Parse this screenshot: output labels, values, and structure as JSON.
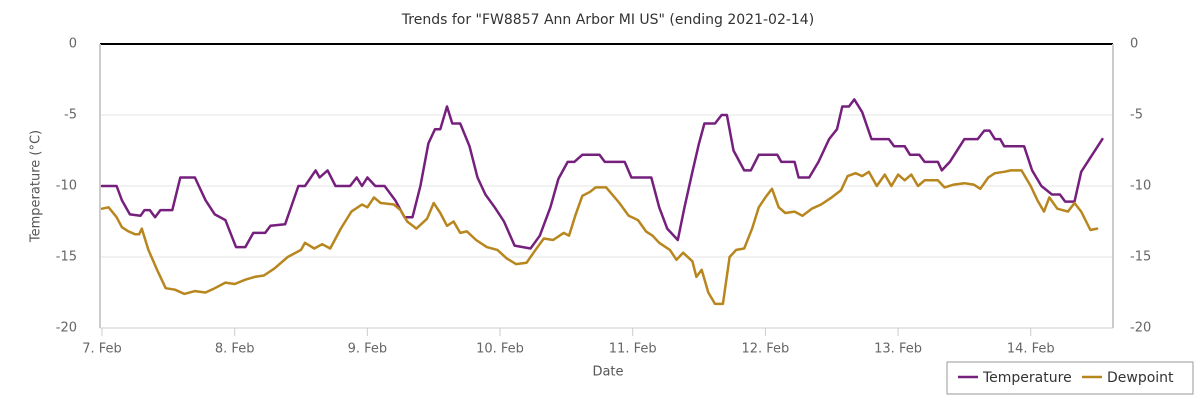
{
  "chart_data": {
    "type": "line",
    "title": "Trends for \"FW8857 Ann Arbor MI US\" (ending 2021-02-14)",
    "x_label": "Date",
    "y_label": "Temperature (°C)",
    "xlim": [
      7,
      14.62
    ],
    "xticks": [
      {
        "value": 7,
        "label": "7. Feb"
      },
      {
        "value": 8,
        "label": "8. Feb"
      },
      {
        "value": 9,
        "label": "9. Feb"
      },
      {
        "value": 10,
        "label": "10. Feb"
      },
      {
        "value": 11,
        "label": "11. Feb"
      },
      {
        "value": 12,
        "label": "12. Feb"
      },
      {
        "value": 13,
        "label": "13. Feb"
      },
      {
        "value": 14,
        "label": "14. Feb"
      }
    ],
    "ylim": [
      -20,
      0
    ],
    "yticks": [
      0,
      -5,
      -10,
      -15,
      -20
    ],
    "y2lim": [
      -20,
      0
    ],
    "y2ticks": [
      0,
      -5,
      -10,
      -15,
      -20
    ],
    "grid": true,
    "legend": "bottom-right",
    "series": [
      {
        "name": "Temperature",
        "color": "#76207e",
        "x": [
          7.0,
          7.11,
          7.15,
          7.21,
          7.29,
          7.32,
          7.36,
          7.4,
          7.44,
          7.53,
          7.59,
          7.7,
          7.78,
          7.85,
          7.93,
          8.01,
          8.08,
          8.14,
          8.23,
          8.27,
          8.38,
          8.48,
          8.53,
          8.61,
          8.64,
          8.7,
          8.76,
          8.87,
          8.92,
          8.96,
          9.0,
          9.06,
          9.13,
          9.21,
          9.28,
          9.34,
          9.4,
          9.46,
          9.51,
          9.55,
          9.6,
          9.64,
          9.7,
          9.77,
          9.83,
          9.89,
          9.96,
          10.03,
          10.11,
          10.23,
          10.3,
          10.38,
          10.44,
          10.51,
          10.56,
          10.62,
          10.75,
          10.79,
          10.94,
          10.99,
          11.14,
          11.2,
          11.26,
          11.34,
          11.39,
          11.45,
          11.5,
          11.54,
          11.62,
          11.67,
          11.71,
          11.76,
          11.84,
          11.89,
          11.95,
          12.09,
          12.12,
          12.22,
          12.25,
          12.33,
          12.4,
          12.48,
          12.54,
          12.58,
          12.63,
          12.67,
          12.73,
          12.8,
          12.93,
          12.97,
          13.05,
          13.09,
          13.16,
          13.2,
          13.3,
          13.33,
          13.39,
          13.5,
          13.6,
          13.65,
          13.69,
          13.73,
          13.77,
          13.8,
          13.95,
          14.01,
          14.08,
          14.16,
          14.22,
          14.26,
          14.33,
          14.38,
          14.45,
          14.54
        ],
        "values": [
          -10,
          -10,
          -11,
          -12,
          -12.1,
          -11.7,
          -11.7,
          -12.2,
          -11.7,
          -11.7,
          -9.4,
          -9.4,
          -11,
          -12,
          -12.4,
          -14.3,
          -14.3,
          -13.3,
          -13.3,
          -12.8,
          -12.7,
          -10,
          -10,
          -8.9,
          -9.4,
          -8.9,
          -10,
          -10,
          -9.4,
          -10,
          -9.4,
          -10,
          -10,
          -11,
          -12.2,
          -12.2,
          -10,
          -7,
          -6,
          -6,
          -4.4,
          -5.6,
          -5.6,
          -7.2,
          -9.4,
          -10.6,
          -11.5,
          -12.5,
          -14.2,
          -14.4,
          -13.5,
          -11.5,
          -9.5,
          -8.3,
          -8.3,
          -7.8,
          -7.8,
          -8.3,
          -8.3,
          -9.4,
          -9.4,
          -11.5,
          -13,
          -13.8,
          -11.5,
          -9,
          -7,
          -5.6,
          -5.6,
          -5,
          -5,
          -7.5,
          -8.9,
          -8.9,
          -7.8,
          -7.8,
          -8.3,
          -8.3,
          -9.4,
          -9.4,
          -8.3,
          -6.7,
          -6,
          -4.4,
          -4.4,
          -3.9,
          -4.8,
          -6.7,
          -6.7,
          -7.2,
          -7.2,
          -7.8,
          -7.8,
          -8.3,
          -8.3,
          -8.9,
          -8.3,
          -6.7,
          -6.7,
          -6.1,
          -6.1,
          -6.7,
          -6.7,
          -7.2,
          -7.2,
          -8.9,
          -10,
          -10.6,
          -10.6,
          -11.1,
          -11.1,
          -9,
          -8,
          -6.7
        ]
      },
      {
        "name": "Dewpoint",
        "color": "#b8861e",
        "x": [
          7.0,
          7.05,
          7.11,
          7.15,
          7.2,
          7.25,
          7.28,
          7.3,
          7.35,
          7.42,
          7.48,
          7.55,
          7.62,
          7.7,
          7.78,
          7.85,
          7.93,
          8.0,
          8.08,
          8.15,
          8.22,
          8.3,
          8.4,
          8.5,
          8.53,
          8.6,
          8.66,
          8.72,
          8.8,
          8.88,
          8.96,
          9.0,
          9.05,
          9.1,
          9.2,
          9.25,
          9.3,
          9.37,
          9.45,
          9.5,
          9.55,
          9.6,
          9.65,
          9.7,
          9.75,
          9.82,
          9.9,
          9.98,
          10.05,
          10.12,
          10.2,
          10.26,
          10.33,
          10.4,
          10.48,
          10.52,
          10.57,
          10.62,
          10.68,
          10.72,
          10.8,
          10.9,
          10.97,
          11.04,
          11.1,
          11.15,
          11.2,
          11.28,
          11.33,
          11.38,
          11.45,
          11.48,
          11.52,
          11.57,
          11.62,
          11.68,
          11.73,
          11.78,
          11.84,
          11.9,
          11.95,
          12.0,
          12.05,
          12.1,
          12.15,
          12.22,
          12.28,
          12.35,
          12.42,
          12.5,
          12.57,
          12.62,
          12.68,
          12.73,
          12.78,
          12.84,
          12.9,
          12.95,
          13.0,
          13.05,
          13.1,
          13.15,
          13.2,
          13.3,
          13.35,
          13.42,
          13.5,
          13.57,
          13.62,
          13.68,
          13.73,
          13.8,
          13.85,
          13.93,
          14.0,
          14.05,
          14.1,
          14.14,
          14.2,
          14.28,
          14.33,
          14.38,
          14.45,
          14.5
        ],
        "values": [
          -11.6,
          -11.5,
          -12.2,
          -12.9,
          -13.2,
          -13.4,
          -13.4,
          -13,
          -14.5,
          -16,
          -17.2,
          -17.3,
          -17.6,
          -17.4,
          -17.5,
          -17.2,
          -16.8,
          -16.9,
          -16.6,
          -16.4,
          -16.3,
          -15.8,
          -15,
          -14.5,
          -14,
          -14.4,
          -14.1,
          -14.4,
          -13,
          -11.8,
          -11.3,
          -11.5,
          -10.8,
          -11.2,
          -11.3,
          -11.7,
          -12.5,
          -13,
          -12.3,
          -11.2,
          -11.9,
          -12.8,
          -12.5,
          -13.3,
          -13.2,
          -13.8,
          -14.3,
          -14.5,
          -15.1,
          -15.5,
          -15.4,
          -14.6,
          -13.7,
          -13.8,
          -13.3,
          -13.5,
          -12,
          -10.7,
          -10.4,
          -10.1,
          -10.1,
          -11.2,
          -12.1,
          -12.4,
          -13.2,
          -13.5,
          -14,
          -14.5,
          -15.2,
          -14.7,
          -15.3,
          -16.4,
          -15.9,
          -17.5,
          -18.3,
          -18.3,
          -15,
          -14.5,
          -14.4,
          -13,
          -11.5,
          -10.8,
          -10.2,
          -11.5,
          -11.9,
          -11.8,
          -12.1,
          -11.6,
          -11.3,
          -10.8,
          -10.3,
          -9.3,
          -9.1,
          -9.3,
          -9,
          -10,
          -9.2,
          -10,
          -9.2,
          -9.6,
          -9.2,
          -10,
          -9.6,
          -9.6,
          -10.1,
          -9.9,
          -9.8,
          -9.9,
          -10.2,
          -9.4,
          -9.1,
          -9,
          -8.9,
          -8.9,
          -10,
          -11,
          -11.8,
          -10.8,
          -11.6,
          -11.8,
          -11.2,
          -11.8,
          -13.1,
          -13
        ]
      }
    ]
  }
}
